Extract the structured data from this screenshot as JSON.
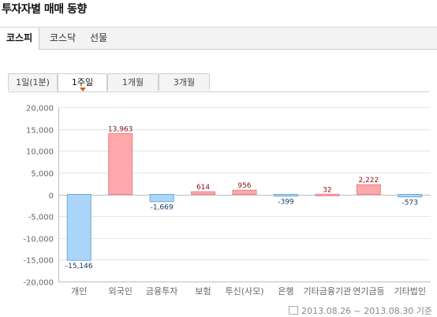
{
  "title": "투자자별 매매 동향",
  "market_tabs": [
    "코스피",
    "코스닥",
    "선물"
  ],
  "period_tabs": [
    "1일(1분)",
    "1주일",
    "1개월",
    "3개월"
  ],
  "footer_date": "2013.08.26 ~ 2013.08.30 기준",
  "chart_data": {
    "type": "bar",
    "title": "",
    "xlabel": "",
    "ylabel": "",
    "categories": [
      "개인",
      "외국인",
      "금융투자",
      "보험",
      "투신(사모)",
      "은행",
      "기타금융",
      "기관연기금등",
      "기타법인"
    ],
    "x_tick_labels": [
      "개인",
      "외국인",
      "금융투자",
      "보험",
      "투신(사모)",
      "은행",
      "기타금융기관",
      "연기금등",
      "기타법인"
    ],
    "values": [
      -15146,
      13963,
      -1669,
      614,
      956,
      -399,
      32,
      2222,
      -573
    ],
    "value_labels": [
      "-15,146",
      "13,963",
      "-1,669",
      "614",
      "956",
      "-399",
      "32",
      "2,222",
      "-573"
    ],
    "ylim": [
      -20000,
      20000
    ],
    "yticks": [
      20000,
      15000,
      10000,
      5000,
      0,
      -5000,
      -10000,
      -15000,
      -20000
    ],
    "ytick_labels": [
      "20,000",
      "15,000",
      "10,000",
      "5,000",
      "0",
      "-5,000",
      "-10,000",
      "-15,000",
      "-20,000"
    ],
    "grid": true,
    "colors": {
      "positive_fill": "#ffa8ab",
      "positive_stroke": "#e88086",
      "positive_label": "#8a1111",
      "negative_fill": "#abd6f9",
      "negative_stroke": "#6fa8d8",
      "negative_label": "#123a66"
    }
  }
}
